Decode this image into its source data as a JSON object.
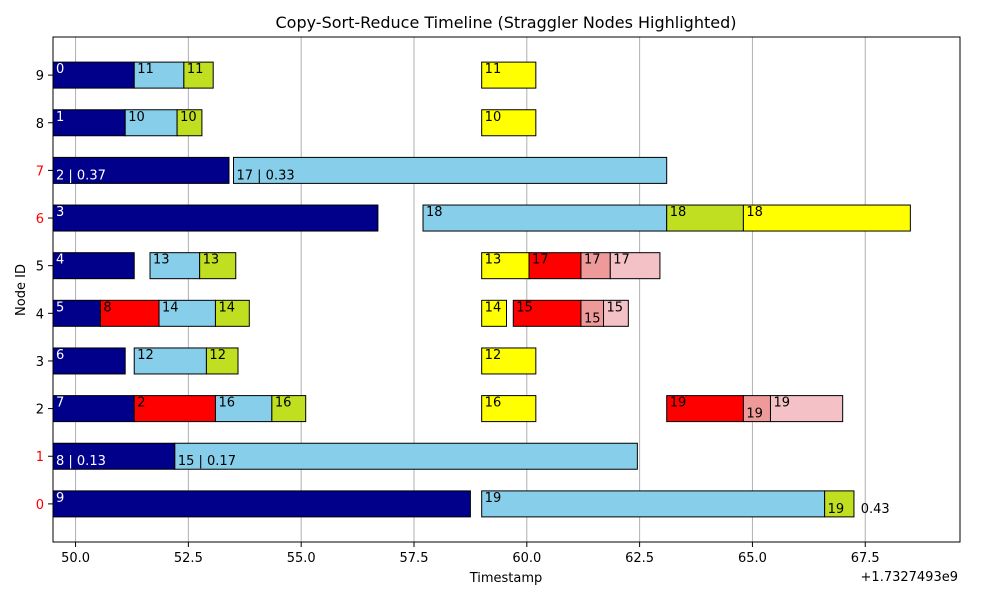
{
  "chart_data": {
    "type": "bar",
    "orientation": "horizontal",
    "title": "Copy-Sort-Reduce Timeline (Straggler Nodes Highlighted)",
    "xlabel": "Timestamp",
    "ylabel": "Node ID",
    "x_offset_label": "+1.7327493e9",
    "xlim": [
      49.5,
      69.6
    ],
    "ylim": [
      -0.8,
      9.8
    ],
    "x_ticks": [
      {
        "value": 50.0,
        "label": "50.0"
      },
      {
        "value": 52.5,
        "label": "52.5"
      },
      {
        "value": 55.0,
        "label": "55.0"
      },
      {
        "value": 57.5,
        "label": "57.5"
      },
      {
        "value": 60.0,
        "label": "60.0"
      },
      {
        "value": 62.5,
        "label": "62.5"
      },
      {
        "value": 65.0,
        "label": "65.0"
      },
      {
        "value": 67.5,
        "label": "67.5"
      }
    ],
    "y_ticks": [
      {
        "value": 0,
        "label": "0",
        "straggler": true
      },
      {
        "value": 1,
        "label": "1",
        "straggler": true
      },
      {
        "value": 2,
        "label": "2",
        "straggler": false
      },
      {
        "value": 3,
        "label": "3",
        "straggler": false
      },
      {
        "value": 4,
        "label": "4",
        "straggler": false
      },
      {
        "value": 5,
        "label": "5",
        "straggler": false
      },
      {
        "value": 6,
        "label": "6",
        "straggler": true
      },
      {
        "value": 7,
        "label": "7",
        "straggler": true
      },
      {
        "value": 8,
        "label": "8",
        "straggler": false
      },
      {
        "value": 9,
        "label": "9",
        "straggler": false
      }
    ],
    "grid": {
      "x": true,
      "y": false
    },
    "colors": {
      "navy": "#00008b",
      "skyblue": "#87ceeb",
      "yellowgreen": "#c0df20",
      "yellow": "#ffff00",
      "red": "#ff0000",
      "lightcoral": "#ee9a9a",
      "pink": "#f3c1c6",
      "straggler_tick": "#ff0000",
      "normal_tick": "#000000"
    },
    "segments": [
      {
        "node": 9,
        "start": 49.5,
        "end": 51.3,
        "color": "navy",
        "label": "0"
      },
      {
        "node": 9,
        "start": 51.3,
        "end": 52.4,
        "color": "skyblue",
        "label": "11"
      },
      {
        "node": 9,
        "start": 52.4,
        "end": 53.05,
        "color": "yellowgreen",
        "label": "11"
      },
      {
        "node": 9,
        "start": 59.0,
        "end": 60.2,
        "color": "yellow",
        "label": "11"
      },
      {
        "node": 8,
        "start": 49.5,
        "end": 51.1,
        "color": "navy",
        "label": "1"
      },
      {
        "node": 8,
        "start": 51.1,
        "end": 52.25,
        "color": "skyblue",
        "label": "10"
      },
      {
        "node": 8,
        "start": 52.25,
        "end": 52.8,
        "color": "yellowgreen",
        "label": "10"
      },
      {
        "node": 8,
        "start": 59.0,
        "end": 60.2,
        "color": "yellow",
        "label": "10"
      },
      {
        "node": 7,
        "start": 49.5,
        "end": 53.4,
        "color": "navy",
        "label": "2 | 0.37",
        "label_pos": "low"
      },
      {
        "node": 7,
        "start": 53.5,
        "end": 63.1,
        "color": "skyblue",
        "label": "17 | 0.33",
        "label_pos": "low"
      },
      {
        "node": 6,
        "start": 49.5,
        "end": 56.7,
        "color": "navy",
        "label": "3"
      },
      {
        "node": 6,
        "start": 57.7,
        "end": 63.1,
        "color": "skyblue",
        "label": "18"
      },
      {
        "node": 6,
        "start": 63.1,
        "end": 64.8,
        "color": "yellowgreen",
        "label": "18"
      },
      {
        "node": 6,
        "start": 64.8,
        "end": 68.5,
        "color": "yellow",
        "label": "18"
      },
      {
        "node": 5,
        "start": 49.5,
        "end": 51.3,
        "color": "navy",
        "label": "4"
      },
      {
        "node": 5,
        "start": 51.65,
        "end": 52.75,
        "color": "skyblue",
        "label": "13"
      },
      {
        "node": 5,
        "start": 52.75,
        "end": 53.55,
        "color": "yellowgreen",
        "label": "13"
      },
      {
        "node": 5,
        "start": 59.0,
        "end": 60.05,
        "color": "yellow",
        "label": "13"
      },
      {
        "node": 5,
        "start": 60.05,
        "end": 61.2,
        "color": "red",
        "label": "17"
      },
      {
        "node": 5,
        "start": 61.2,
        "end": 61.85,
        "color": "lightcoral",
        "label": "17"
      },
      {
        "node": 5,
        "start": 61.85,
        "end": 62.95,
        "color": "pink",
        "label": "17"
      },
      {
        "node": 4,
        "start": 49.5,
        "end": 50.55,
        "color": "navy",
        "label": "5"
      },
      {
        "node": 4,
        "start": 50.55,
        "end": 51.85,
        "color": "red",
        "label": "8"
      },
      {
        "node": 4,
        "start": 51.85,
        "end": 53.1,
        "color": "skyblue",
        "label": "14"
      },
      {
        "node": 4,
        "start": 53.1,
        "end": 53.85,
        "color": "yellowgreen",
        "label": "14"
      },
      {
        "node": 4,
        "start": 59.0,
        "end": 59.55,
        "color": "yellow",
        "label": "14"
      },
      {
        "node": 4,
        "start": 59.7,
        "end": 61.2,
        "color": "red",
        "label": "15"
      },
      {
        "node": 4,
        "start": 61.2,
        "end": 61.7,
        "color": "lightcoral",
        "label": "15",
        "label_pos": "low"
      },
      {
        "node": 4,
        "start": 61.7,
        "end": 62.25,
        "color": "pink",
        "label": "15"
      },
      {
        "node": 3,
        "start": 49.5,
        "end": 51.1,
        "color": "navy",
        "label": "6"
      },
      {
        "node": 3,
        "start": 51.3,
        "end": 52.9,
        "color": "skyblue",
        "label": "12"
      },
      {
        "node": 3,
        "start": 52.9,
        "end": 53.6,
        "color": "yellowgreen",
        "label": "12"
      },
      {
        "node": 3,
        "start": 59.0,
        "end": 60.2,
        "color": "yellow",
        "label": "12"
      },
      {
        "node": 2,
        "start": 49.5,
        "end": 51.3,
        "color": "navy",
        "label": "7"
      },
      {
        "node": 2,
        "start": 51.3,
        "end": 53.1,
        "color": "red",
        "label": "2"
      },
      {
        "node": 2,
        "start": 53.1,
        "end": 54.35,
        "color": "skyblue",
        "label": "16"
      },
      {
        "node": 2,
        "start": 54.35,
        "end": 55.1,
        "color": "yellowgreen",
        "label": "16"
      },
      {
        "node": 2,
        "start": 59.0,
        "end": 60.2,
        "color": "yellow",
        "label": "16"
      },
      {
        "node": 2,
        "start": 63.1,
        "end": 64.8,
        "color": "red",
        "label": "19"
      },
      {
        "node": 2,
        "start": 64.8,
        "end": 65.4,
        "color": "lightcoral",
        "label": "19",
        "label_pos": "low"
      },
      {
        "node": 2,
        "start": 65.4,
        "end": 67.0,
        "color": "pink",
        "label": "19"
      },
      {
        "node": 1,
        "start": 49.5,
        "end": 52.2,
        "color": "navy",
        "label": "8 | 0.13",
        "label_pos": "low"
      },
      {
        "node": 1,
        "start": 52.2,
        "end": 62.45,
        "color": "skyblue",
        "label": "15 | 0.17",
        "label_pos": "low"
      },
      {
        "node": 0,
        "start": 49.5,
        "end": 58.75,
        "color": "navy",
        "label": "9"
      },
      {
        "node": 0,
        "start": 59.0,
        "end": 66.6,
        "color": "skyblue",
        "label": "19"
      },
      {
        "node": 0,
        "start": 66.6,
        "end": 67.25,
        "color": "yellowgreen",
        "label": "19",
        "label_pos": "low"
      }
    ],
    "annotations": [
      {
        "node": 0,
        "x": 67.4,
        "text": "0.43",
        "position": "low"
      }
    ]
  }
}
